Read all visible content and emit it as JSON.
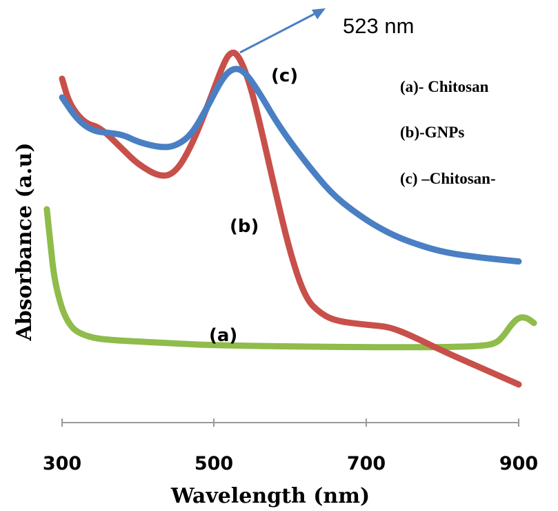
{
  "chart_data": {
    "type": "line",
    "xlabel": "Wavelength (nm)",
    "ylabel": "Absorbance (a.u)",
    "xlim": [
      300,
      900
    ],
    "ylim": [
      0,
      100
    ],
    "x_ticks": [
      "300",
      "500",
      "700",
      "900"
    ],
    "grid": false,
    "legend": {
      "placement": "top-right",
      "entries": [
        "(a)- Chitosan",
        "(b)-GNPs",
        "(c) –Chitosan-"
      ]
    },
    "annotations": {
      "peak_label": "523 nm",
      "peak_x": 523
    },
    "series": [
      {
        "label": "(a)",
        "color": "#8fbc4a",
        "points": [
          [
            280,
            55
          ],
          [
            285,
            45
          ],
          [
            290,
            36
          ],
          [
            300,
            28
          ],
          [
            310,
            24
          ],
          [
            320,
            22
          ],
          [
            340,
            20.5
          ],
          [
            360,
            20
          ],
          [
            400,
            19.5
          ],
          [
            450,
            19
          ],
          [
            500,
            18.5
          ],
          [
            600,
            18.2
          ],
          [
            700,
            18
          ],
          [
            800,
            18
          ],
          [
            850,
            18.3
          ],
          [
            870,
            19
          ],
          [
            880,
            21
          ],
          [
            890,
            24
          ],
          [
            900,
            26
          ],
          [
            910,
            26
          ],
          [
            920,
            24.5
          ]
        ]
      },
      {
        "label": "(b)",
        "color": "#c8504a",
        "points": [
          [
            300,
            90
          ],
          [
            310,
            83
          ],
          [
            330,
            78
          ],
          [
            350,
            77
          ],
          [
            380,
            71
          ],
          [
            400,
            67
          ],
          [
            430,
            63.5
          ],
          [
            450,
            65
          ],
          [
            470,
            72
          ],
          [
            490,
            82
          ],
          [
            510,
            93
          ],
          [
            520,
            97
          ],
          [
            530,
            97
          ],
          [
            545,
            90
          ],
          [
            560,
            78
          ],
          [
            580,
            60
          ],
          [
            600,
            43
          ],
          [
            620,
            31
          ],
          [
            640,
            27
          ],
          [
            660,
            25
          ],
          [
            700,
            24
          ],
          [
            730,
            23.5
          ],
          [
            760,
            21
          ],
          [
            800,
            17
          ],
          [
            850,
            12.5
          ],
          [
            900,
            8
          ]
        ]
      },
      {
        "label": "(c)",
        "color": "#4a7fc3",
        "points": [
          [
            300,
            85
          ],
          [
            320,
            79
          ],
          [
            340,
            76
          ],
          [
            360,
            75.5
          ],
          [
            380,
            75
          ],
          [
            400,
            73
          ],
          [
            430,
            71.5
          ],
          [
            450,
            72
          ],
          [
            470,
            75
          ],
          [
            490,
            82
          ],
          [
            510,
            90
          ],
          [
            525,
            93
          ],
          [
            540,
            92
          ],
          [
            560,
            86
          ],
          [
            580,
            79
          ],
          [
            600,
            73
          ],
          [
            630,
            65
          ],
          [
            660,
            58
          ],
          [
            700,
            52
          ],
          [
            730,
            48.5
          ],
          [
            760,
            46
          ],
          [
            800,
            43.5
          ],
          [
            850,
            42
          ],
          [
            900,
            41
          ]
        ]
      }
    ]
  }
}
